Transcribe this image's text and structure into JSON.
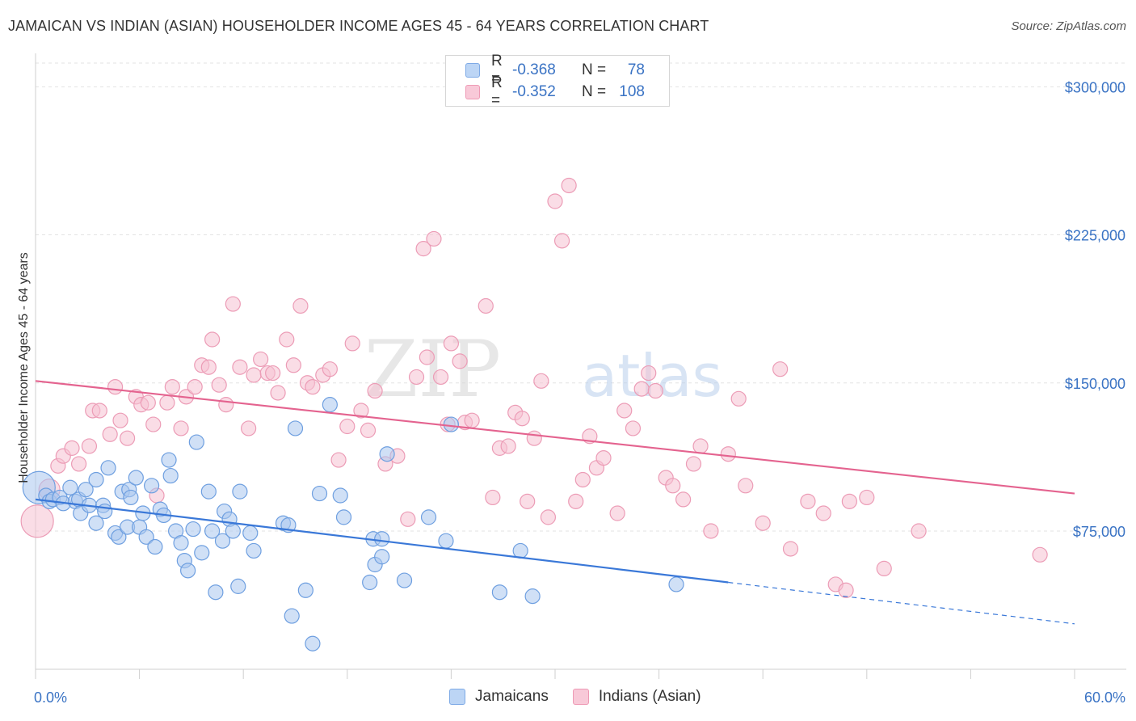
{
  "title": "JAMAICAN VS INDIAN (ASIAN) HOUSEHOLDER INCOME AGES 45 - 64 YEARS CORRELATION CHART",
  "source": "Source: ZipAtlas.com",
  "watermark": {
    "zip": "ZIP",
    "atlas": "atlas"
  },
  "legend": {
    "rows": [
      {
        "r_label": "R =",
        "r_value": "-0.368",
        "n_label": "N =",
        "n_value": "78",
        "color": "#7eaae6",
        "fill": "#bcd5f5"
      },
      {
        "r_label": "R =",
        "r_value": "-0.352",
        "n_label": "N =",
        "n_value": "108",
        "color": "#ee9ab5",
        "fill": "#f8c9d8"
      }
    ]
  },
  "bottom_legend": [
    "Jamaicans",
    "Indians (Asian)"
  ],
  "chart_data": {
    "type": "scatter",
    "title": "JAMAICAN VS INDIAN (ASIAN) HOUSEHOLDER INCOME AGES 45 - 64 YEARS CORRELATION CHART",
    "xlabel": "",
    "ylabel": "Householder Income Ages 45 - 64 years",
    "x_tick_labels": [
      "0.0%",
      "60.0%"
    ],
    "y_tick_labels": [
      "$75,000",
      "$150,000",
      "$225,000",
      "$300,000"
    ],
    "y_ticks": [
      75000,
      150000,
      225000,
      300000
    ],
    "xlim": [
      0,
      60
    ],
    "ylim": [
      5000,
      312000
    ],
    "grid": true,
    "legend_position": "top-center",
    "series": [
      {
        "name": "Jamaicans",
        "color": "#3a78d8",
        "marker_fill": "#a9c7ef",
        "marker_stroke": "#6e9fe0",
        "trend": {
          "x0": 0,
          "y0": 91000,
          "x1": 40,
          "y1": 49000,
          "dash_to_x": 60,
          "dash_to_y": 28000
        },
        "points": [
          [
            0.2,
            97000,
            "L"
          ],
          [
            0.6,
            93000
          ],
          [
            0.8,
            90000
          ],
          [
            1.0,
            91000
          ],
          [
            1.4,
            92000
          ],
          [
            1.6,
            89000
          ],
          [
            2.0,
            97000
          ],
          [
            2.3,
            90000
          ],
          [
            2.5,
            91000
          ],
          [
            2.6,
            84000
          ],
          [
            2.9,
            96000
          ],
          [
            3.1,
            88000
          ],
          [
            3.5,
            79000
          ],
          [
            3.5,
            101000
          ],
          [
            3.9,
            88000
          ],
          [
            4.0,
            85000
          ],
          [
            4.2,
            107000
          ],
          [
            4.6,
            74000
          ],
          [
            4.8,
            72000
          ],
          [
            5.0,
            95000
          ],
          [
            5.3,
            77000
          ],
          [
            5.4,
            96000
          ],
          [
            5.5,
            92000
          ],
          [
            5.8,
            102000
          ],
          [
            6.0,
            77000
          ],
          [
            6.2,
            84000
          ],
          [
            6.4,
            72000
          ],
          [
            6.7,
            98000
          ],
          [
            6.9,
            67000
          ],
          [
            7.2,
            86000
          ],
          [
            7.4,
            83000
          ],
          [
            7.7,
            111000
          ],
          [
            7.8,
            103000
          ],
          [
            8.1,
            75000
          ],
          [
            8.4,
            69000
          ],
          [
            8.6,
            60000
          ],
          [
            8.8,
            55000
          ],
          [
            9.1,
            76000
          ],
          [
            9.3,
            120000
          ],
          [
            9.6,
            64000
          ],
          [
            10.0,
            95000
          ],
          [
            10.2,
            75000
          ],
          [
            10.4,
            44000
          ],
          [
            10.8,
            70000
          ],
          [
            10.9,
            85000
          ],
          [
            11.2,
            81000
          ],
          [
            11.4,
            75000
          ],
          [
            11.7,
            47000
          ],
          [
            11.8,
            95000
          ],
          [
            12.4,
            74000
          ],
          [
            12.6,
            65000
          ],
          [
            14.3,
            79000
          ],
          [
            14.6,
            78000
          ],
          [
            14.8,
            32000
          ],
          [
            15.0,
            127000
          ],
          [
            15.6,
            45000
          ],
          [
            16.0,
            18000
          ],
          [
            16.4,
            94000
          ],
          [
            17.0,
            139000
          ],
          [
            17.6,
            93000
          ],
          [
            17.8,
            82000
          ],
          [
            19.3,
            49000
          ],
          [
            19.5,
            71000
          ],
          [
            19.6,
            58000
          ],
          [
            20.0,
            62000
          ],
          [
            20.0,
            71000
          ],
          [
            20.3,
            114000
          ],
          [
            21.3,
            50000
          ],
          [
            22.7,
            82000
          ],
          [
            23.7,
            70000
          ],
          [
            24.0,
            129000
          ],
          [
            26.8,
            44000
          ],
          [
            28.0,
            65000
          ],
          [
            28.7,
            42000
          ],
          [
            37.0,
            48000
          ]
        ]
      },
      {
        "name": "Indians (Asian)",
        "color": "#e4638f",
        "marker_fill": "#f6c1d2",
        "marker_stroke": "#ec9cb6",
        "trend": {
          "x0": 0,
          "y0": 151000,
          "x1": 60,
          "y1": 94000
        },
        "points": [
          [
            0.1,
            80000,
            "L"
          ],
          [
            0.8,
            96000,
            "M"
          ],
          [
            1.3,
            108000
          ],
          [
            1.6,
            113000
          ],
          [
            2.1,
            117000
          ],
          [
            2.5,
            109000
          ],
          [
            3.1,
            118000
          ],
          [
            3.3,
            136000
          ],
          [
            3.7,
            136000
          ],
          [
            4.3,
            124000
          ],
          [
            4.6,
            148000
          ],
          [
            4.9,
            131000
          ],
          [
            5.3,
            122000
          ],
          [
            5.8,
            143000
          ],
          [
            6.1,
            139000
          ],
          [
            6.5,
            140000
          ],
          [
            6.8,
            129000
          ],
          [
            7.0,
            93000
          ],
          [
            7.6,
            140000
          ],
          [
            7.9,
            148000
          ],
          [
            8.4,
            127000
          ],
          [
            8.7,
            143000
          ],
          [
            9.2,
            148000
          ],
          [
            9.6,
            159000
          ],
          [
            10.0,
            158000
          ],
          [
            10.2,
            172000
          ],
          [
            10.6,
            149000
          ],
          [
            11.0,
            139000
          ],
          [
            11.4,
            190000
          ],
          [
            11.8,
            158000
          ],
          [
            12.3,
            127000
          ],
          [
            12.6,
            154000
          ],
          [
            13.0,
            162000
          ],
          [
            13.4,
            155000
          ],
          [
            13.7,
            155000
          ],
          [
            14.0,
            145000
          ],
          [
            14.5,
            172000
          ],
          [
            14.9,
            159000
          ],
          [
            15.3,
            189000
          ],
          [
            15.7,
            150000
          ],
          [
            16.0,
            148000
          ],
          [
            16.6,
            154000
          ],
          [
            17.0,
            157000
          ],
          [
            17.5,
            111000
          ],
          [
            18.0,
            128000
          ],
          [
            18.3,
            170000
          ],
          [
            18.8,
            136000
          ],
          [
            19.2,
            126000
          ],
          [
            19.6,
            146000
          ],
          [
            20.2,
            109000
          ],
          [
            20.9,
            113000
          ],
          [
            21.5,
            81000
          ],
          [
            22.0,
            153000
          ],
          [
            22.4,
            218000
          ],
          [
            22.6,
            163000
          ],
          [
            23.0,
            223000
          ],
          [
            23.4,
            153000
          ],
          [
            23.8,
            129000
          ],
          [
            24.0,
            170000
          ],
          [
            24.5,
            161000
          ],
          [
            24.8,
            130000
          ],
          [
            25.2,
            131000
          ],
          [
            26.0,
            189000
          ],
          [
            26.4,
            92000
          ],
          [
            26.8,
            117000
          ],
          [
            27.3,
            118000
          ],
          [
            27.7,
            135000
          ],
          [
            28.1,
            132000
          ],
          [
            28.4,
            90000
          ],
          [
            28.8,
            122000
          ],
          [
            29.2,
            151000
          ],
          [
            29.6,
            82000
          ],
          [
            30.0,
            242000
          ],
          [
            30.4,
            222000
          ],
          [
            30.8,
            250000
          ],
          [
            31.2,
            90000
          ],
          [
            31.6,
            101000
          ],
          [
            32.0,
            123000
          ],
          [
            32.4,
            107000
          ],
          [
            32.8,
            112000
          ],
          [
            33.6,
            84000
          ],
          [
            34.0,
            136000
          ],
          [
            34.5,
            127000
          ],
          [
            35.0,
            147000
          ],
          [
            35.4,
            155000
          ],
          [
            35.8,
            146000
          ],
          [
            36.4,
            102000
          ],
          [
            36.8,
            98000
          ],
          [
            37.4,
            91000
          ],
          [
            38.0,
            109000
          ],
          [
            38.4,
            118000
          ],
          [
            39.0,
            75000
          ],
          [
            40.0,
            114000
          ],
          [
            40.6,
            142000
          ],
          [
            41.0,
            98000
          ],
          [
            42.0,
            79000
          ],
          [
            43.0,
            157000
          ],
          [
            43.6,
            66000
          ],
          [
            44.6,
            90000
          ],
          [
            45.5,
            84000
          ],
          [
            46.2,
            48000
          ],
          [
            46.8,
            45000
          ],
          [
            47.0,
            90000
          ],
          [
            48.0,
            92000
          ],
          [
            49.0,
            56000
          ],
          [
            51.0,
            75000
          ],
          [
            58.0,
            63000
          ]
        ]
      }
    ]
  }
}
